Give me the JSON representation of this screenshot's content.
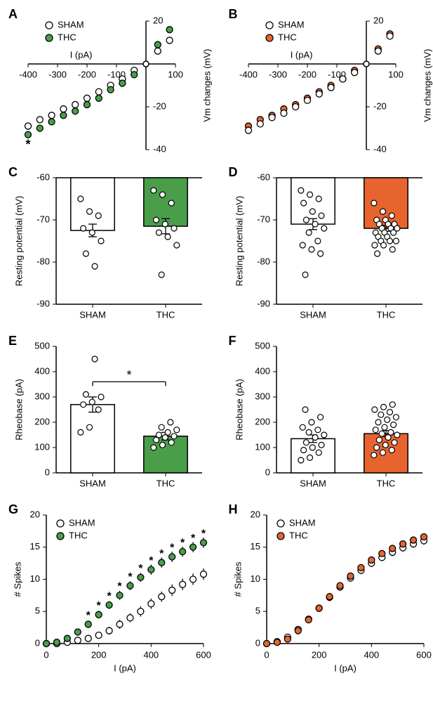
{
  "colors": {
    "green": "#4a9e4a",
    "orange": "#e8642e",
    "black": "#000000",
    "white": "#ffffff"
  },
  "panelA": {
    "type": "scatter",
    "xlabel": "I (pA)",
    "ylabel": "Vm changes (mV)",
    "xlim": [
      -400,
      100
    ],
    "ylim": [
      -40,
      20
    ],
    "xtick_step": 100,
    "ytick_step": 20,
    "legend": [
      {
        "label": "SHAM",
        "color": "#ffffff"
      },
      {
        "label": "THC",
        "color": "#4a9e4a"
      }
    ],
    "series": [
      {
        "name": "SHAM",
        "color": "#ffffff",
        "x": [
          -400,
          -360,
          -320,
          -280,
          -240,
          -200,
          -160,
          -120,
          -80,
          -40,
          40,
          80
        ],
        "y": [
          -29,
          -26,
          -24,
          -21,
          -19,
          -16,
          -13,
          -10,
          -7,
          -3,
          6,
          11
        ],
        "err": [
          1.5,
          1.3,
          1.2,
          1.1,
          1.0,
          0.9,
          0.8,
          0.7,
          0.5,
          0.3,
          0.5,
          0.7
        ]
      },
      {
        "name": "THC",
        "color": "#4a9e4a",
        "x": [
          -400,
          -360,
          -320,
          -280,
          -240,
          -200,
          -160,
          -120,
          -80,
          -40,
          40,
          80
        ],
        "y": [
          -33,
          -30,
          -27,
          -24,
          -22,
          -19,
          -16,
          -12,
          -9,
          -5,
          9,
          16
        ],
        "err": [
          1.5,
          1.3,
          1.2,
          1.1,
          1.0,
          0.9,
          0.8,
          0.7,
          0.5,
          0.3,
          0.5,
          0.7
        ]
      }
    ],
    "sig_markers": [
      {
        "x": -400,
        "y": -38,
        "text": "*"
      }
    ],
    "fontsize": 13
  },
  "panelB": {
    "type": "scatter",
    "xlabel": "I (pA)",
    "ylabel": "Vm changes (mV)",
    "xlim": [
      -400,
      100
    ],
    "ylim": [
      -40,
      20
    ],
    "xtick_step": 100,
    "ytick_step": 20,
    "legend": [
      {
        "label": "SHAM",
        "color": "#ffffff"
      },
      {
        "label": "THC",
        "color": "#e8642e"
      }
    ],
    "series": [
      {
        "name": "THC",
        "color": "#e8642e",
        "x": [
          -400,
          -360,
          -320,
          -280,
          -240,
          -200,
          -160,
          -120,
          -80,
          -40,
          40,
          80
        ],
        "y": [
          -29,
          -26,
          -24,
          -21,
          -19,
          -16,
          -13,
          -10,
          -7,
          -3,
          7,
          14
        ],
        "err": [
          1.2,
          1.1,
          1.0,
          0.9,
          0.8,
          0.7,
          0.6,
          0.5,
          0.4,
          0.3,
          0.4,
          0.5
        ]
      },
      {
        "name": "SHAM",
        "color": "#ffffff",
        "x": [
          -400,
          -360,
          -320,
          -280,
          -240,
          -200,
          -160,
          -120,
          -80,
          -40,
          40,
          80
        ],
        "y": [
          -31,
          -28,
          -25,
          -23,
          -20,
          -17,
          -14,
          -11,
          -7,
          -4,
          6,
          13
        ],
        "err": [
          1.3,
          1.2,
          1.1,
          1.0,
          0.9,
          0.8,
          0.7,
          0.6,
          0.4,
          0.3,
          0.4,
          0.5
        ]
      }
    ],
    "fontsize": 13
  },
  "panelC": {
    "type": "bar",
    "ylabel": "Resting potential (mV)",
    "ylim": [
      -90,
      -60
    ],
    "ytick_step": 10,
    "categories": [
      "SHAM",
      "THC"
    ],
    "bars": [
      {
        "label": "SHAM",
        "value": -72.5,
        "err": 1.5,
        "color": "#ffffff"
      },
      {
        "label": "THC",
        "value": -71.5,
        "err": 1.8,
        "color": "#4a9e4a"
      }
    ],
    "scatter": [
      {
        "idx": 0,
        "values": [
          -65,
          -68,
          -69,
          -72,
          -73,
          -75,
          -78,
          -81
        ]
      },
      {
        "idx": 1,
        "values": [
          -63,
          -64,
          -66,
          -70,
          -71,
          -72,
          -73,
          -74,
          -76,
          -83
        ]
      }
    ],
    "bar_width": 0.6,
    "fontsize": 13
  },
  "panelD": {
    "type": "bar",
    "ylabel": "Resting potential (mV)",
    "ylim": [
      -90,
      -60
    ],
    "ytick_step": 10,
    "categories": [
      "SHAM",
      "THC"
    ],
    "bars": [
      {
        "label": "SHAM",
        "value": -71,
        "err": 1.3,
        "color": "#ffffff"
      },
      {
        "label": "THC",
        "value": -72,
        "err": 0.7,
        "color": "#e8642e"
      }
    ],
    "scatter": [
      {
        "idx": 0,
        "values": [
          -63,
          -64,
          -65,
          -66,
          -68,
          -69,
          -70,
          -71,
          -72,
          -73,
          -75,
          -76,
          -77,
          -78,
          -83
        ]
      },
      {
        "idx": 1,
        "values": [
          -66,
          -68,
          -69,
          -70,
          -70,
          -71,
          -71,
          -71,
          -72,
          -72,
          -72,
          -73,
          -73,
          -73,
          -74,
          -74,
          -75,
          -75,
          -75,
          -76,
          -76,
          -77,
          -78
        ]
      }
    ],
    "bar_width": 0.6,
    "fontsize": 13
  },
  "panelE": {
    "type": "bar",
    "ylabel": "Rheobase (pA)",
    "ylim": [
      0,
      500
    ],
    "ytick_step": 100,
    "categories": [
      "SHAM",
      "THC"
    ],
    "bars": [
      {
        "label": "SHAM",
        "value": 270,
        "err": 30,
        "color": "#ffffff"
      },
      {
        "label": "THC",
        "value": 145,
        "err": 15,
        "color": "#4a9e4a"
      }
    ],
    "scatter": [
      {
        "idx": 0,
        "values": [
          160,
          180,
          250,
          270,
          280,
          300,
          310,
          450
        ]
      },
      {
        "idx": 1,
        "values": [
          100,
          110,
          120,
          130,
          140,
          145,
          150,
          160,
          170,
          180,
          200
        ]
      }
    ],
    "sig_line": {
      "x1": 0,
      "x2": 1,
      "y": 360,
      "text": "*"
    },
    "bar_width": 0.6,
    "fontsize": 13
  },
  "panelF": {
    "type": "bar",
    "ylabel": "Rheobase (pA)",
    "ylim": [
      0,
      500
    ],
    "ytick_step": 100,
    "categories": [
      "SHAM",
      "THC"
    ],
    "bars": [
      {
        "label": "SHAM",
        "value": 135,
        "err": 15,
        "color": "#ffffff"
      },
      {
        "label": "THC",
        "value": 155,
        "err": 12,
        "color": "#e8642e"
      }
    ],
    "scatter": [
      {
        "idx": 0,
        "values": [
          50,
          60,
          80,
          90,
          100,
          110,
          120,
          140,
          150,
          160,
          170,
          180,
          200,
          220,
          250
        ]
      },
      {
        "idx": 1,
        "values": [
          70,
          80,
          90,
          100,
          110,
          120,
          130,
          140,
          150,
          155,
          160,
          170,
          180,
          190,
          200,
          210,
          220,
          230,
          240,
          250,
          260,
          270
        ]
      }
    ],
    "bar_width": 0.6,
    "fontsize": 13
  },
  "panelG": {
    "type": "scatter-line",
    "xlabel": "I (pA)",
    "ylabel": "# Spikes",
    "xlim": [
      0,
      600
    ],
    "ylim": [
      0,
      20
    ],
    "xtick_step": 200,
    "ytick_step": 5,
    "legend": [
      {
        "label": "SHAM",
        "color": "#ffffff"
      },
      {
        "label": "THC",
        "color": "#4a9e4a"
      }
    ],
    "series": [
      {
        "name": "SHAM",
        "color": "#ffffff",
        "x": [
          0,
          40,
          80,
          120,
          160,
          200,
          240,
          280,
          320,
          360,
          400,
          440,
          480,
          520,
          560,
          600
        ],
        "y": [
          0,
          0,
          0.2,
          0.5,
          0.8,
          1.3,
          2.0,
          3.0,
          4.0,
          5.0,
          6.2,
          7.3,
          8.3,
          9.2,
          10.0,
          10.8
        ],
        "err": [
          0,
          0,
          0.2,
          0.3,
          0.4,
          0.5,
          0.6,
          0.7,
          0.7,
          0.8,
          0.8,
          0.8,
          0.9,
          0.9,
          0.9,
          0.9
        ]
      },
      {
        "name": "THC",
        "color": "#4a9e4a",
        "x": [
          0,
          40,
          80,
          120,
          160,
          200,
          240,
          280,
          320,
          360,
          400,
          440,
          480,
          520,
          560,
          600
        ],
        "y": [
          0,
          0.2,
          0.8,
          1.8,
          3.0,
          4.5,
          6.0,
          7.5,
          9.0,
          10.3,
          11.5,
          12.6,
          13.5,
          14.3,
          15.0,
          15.7
        ],
        "err": [
          0,
          0.2,
          0.3,
          0.4,
          0.5,
          0.6,
          0.6,
          0.7,
          0.7,
          0.7,
          0.8,
          0.8,
          0.8,
          0.8,
          0.8,
          0.8
        ]
      }
    ],
    "sig_x": [
      160,
      200,
      240,
      280,
      320,
      360,
      400,
      440,
      480,
      520,
      560,
      600
    ],
    "fontsize": 13
  },
  "panelH": {
    "type": "scatter-line",
    "xlabel": "I (pA)",
    "ylabel": "# Spikes",
    "xlim": [
      0,
      600
    ],
    "ylim": [
      0,
      20
    ],
    "xtick_step": 200,
    "ytick_step": 5,
    "legend": [
      {
        "label": "SHAM",
        "color": "#ffffff"
      },
      {
        "label": "THC",
        "color": "#e8642e"
      }
    ],
    "series": [
      {
        "name": "SHAM",
        "color": "#ffffff",
        "x": [
          0,
          40,
          80,
          120,
          160,
          200,
          240,
          280,
          320,
          360,
          400,
          440,
          480,
          520,
          560,
          600
        ],
        "y": [
          0,
          0.3,
          1.0,
          2.2,
          3.8,
          5.5,
          7.2,
          8.8,
          10.2,
          11.4,
          12.5,
          13.4,
          14.2,
          14.9,
          15.5,
          16.0
        ],
        "err": [
          0,
          0.2,
          0.3,
          0.4,
          0.5,
          0.5,
          0.6,
          0.6,
          0.6,
          0.6,
          0.6,
          0.6,
          0.6,
          0.6,
          0.6,
          0.6
        ]
      },
      {
        "name": "THC",
        "color": "#e8642e",
        "x": [
          0,
          40,
          80,
          120,
          160,
          200,
          240,
          280,
          320,
          360,
          400,
          440,
          480,
          520,
          560,
          600
        ],
        "y": [
          0,
          0.2,
          0.7,
          2.0,
          3.7,
          5.5,
          7.3,
          9.0,
          10.5,
          11.8,
          13.0,
          14.0,
          14.8,
          15.5,
          16.1,
          16.6
        ],
        "err": [
          0,
          0.1,
          0.2,
          0.3,
          0.4,
          0.4,
          0.5,
          0.5,
          0.5,
          0.5,
          0.5,
          0.5,
          0.5,
          0.5,
          0.5,
          0.5
        ]
      }
    ],
    "fontsize": 13
  }
}
